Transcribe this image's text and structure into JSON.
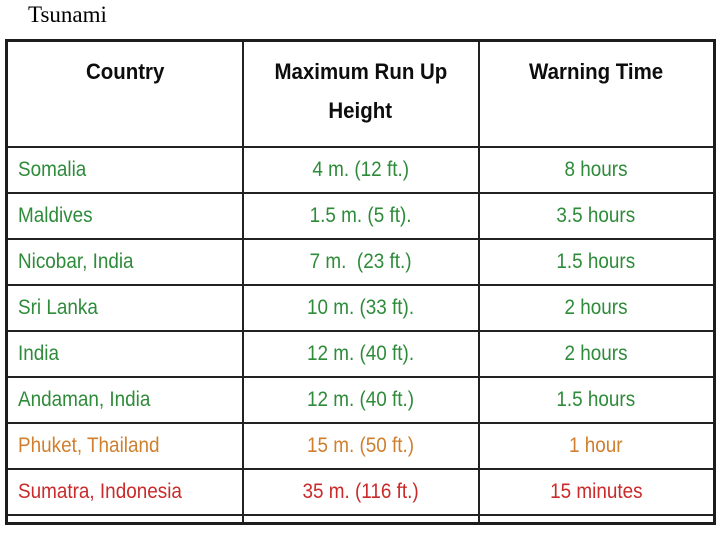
{
  "title": "Tsunami",
  "table": {
    "header": {
      "col_country": "Country",
      "col_height_line1": "Maximum Run Up",
      "col_height_line2": "Height",
      "col_warning": "Warning Time"
    },
    "rows": [
      {
        "country": "Somalia",
        "height": "4 m. (12 ft.)",
        "warning": "8 hours",
        "color": "#2e8b3a"
      },
      {
        "country": "Maldives",
        "height": "1.5 m. (5 ft).",
        "warning": "3.5 hours",
        "color": "#2e8b3a"
      },
      {
        "country": "Nicobar, India",
        "height": "7 m.  (23 ft.)",
        "warning": "1.5 hours",
        "color": "#2e8b3a"
      },
      {
        "country": "Sri Lanka",
        "height": "10 m. (33 ft).",
        "warning": "2 hours",
        "color": "#2e8b3a"
      },
      {
        "country": "India",
        "height": "12 m. (40 ft).",
        "warning": "2 hours",
        "color": "#2e8b3a"
      },
      {
        "country": "Andaman, India",
        "height": "12 m. (40 ft.)",
        "warning": "1.5 hours",
        "color": "#2e8b3a"
      },
      {
        "country": "Phuket, Thailand",
        "height": "15 m. (50 ft.)",
        "warning": "1 hour",
        "color": "#cf7f2d"
      },
      {
        "country": "Sumatra, Indonesia",
        "height": "35 m. (116 ft.)",
        "warning": "15 minutes",
        "color": "#c92a2a"
      }
    ],
    "palette": {
      "green": "#2e8b3a",
      "orange": "#cf7f2d",
      "red": "#c92a2a",
      "border": "#1c1c1c",
      "header_text": "#0d0d0d"
    }
  }
}
